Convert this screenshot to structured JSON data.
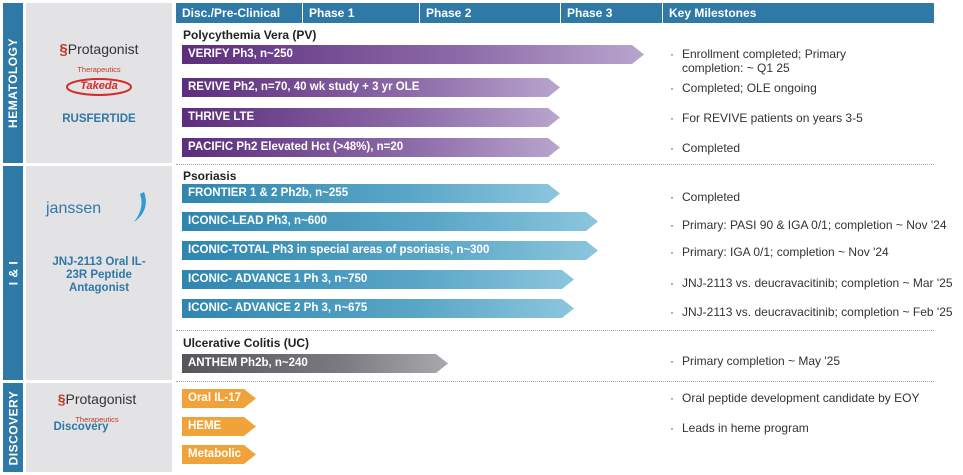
{
  "headers": [
    "Disc./Pre-Clinical",
    "Phase 1",
    "Phase 2",
    "Phase 3",
    "Key Milestones"
  ],
  "sections": {
    "hematology": {
      "label": "HEMATOLOGY",
      "logo_protagonist": "Protagonist",
      "logo_protagonist_sub": "Therapeutics",
      "logo_takeda": "Takeda",
      "program": "RUSFERTIDE",
      "indication": "Polycythemia Vera (PV)",
      "trials": [
        {
          "label": "VERIFY Ph3, n~250",
          "milestone": "Enrollment completed; Primary completion: ~ Q1 25"
        },
        {
          "label": "REVIVE Ph2, n=70, 40 wk study + 3 yr OLE",
          "milestone": "Completed; OLE ongoing"
        },
        {
          "label": "THRIVE LTE",
          "milestone": "For REVIVE patients on years 3-5"
        },
        {
          "label": "PACIFIC Ph2 Elevated Hct (>48%), n=20",
          "milestone": "Completed"
        }
      ]
    },
    "ii": {
      "label": "I & I",
      "logo_janssen": "janssen",
      "program": "JNJ-2113 Oral IL-23R Peptide Antagonist",
      "indication": "Psoriasis",
      "trials": [
        {
          "label": "FRONTIER 1 & 2 Ph2b, n~255",
          "milestone": "Completed"
        },
        {
          "label": "ICONIC-LEAD Ph3, n~600",
          "milestone": "Primary: PASI 90 & IGA 0/1; completion ~ Nov '24"
        },
        {
          "label": "ICONIC-TOTAL Ph3 in special areas of psoriasis, n~300",
          "milestone": "Primary: IGA 0/1; completion ~ Nov '24"
        },
        {
          "label": "ICONIC- ADVANCE 1 Ph 3, n~750",
          "milestone": "JNJ-2113 vs. deucravacitinib; completion ~ Mar '25"
        },
        {
          "label": "ICONIC- ADVANCE 2 Ph 3, n~675",
          "milestone": "JNJ-2113 vs. deucravacitinib; completion ~ Feb '25"
        }
      ],
      "indication2": "Ulcerative Colitis (UC)",
      "trials2": [
        {
          "label": "ANTHEM Ph2b, n~240",
          "milestone": "Primary completion ~ May '25"
        }
      ]
    },
    "discovery": {
      "label": "DISCOVERY",
      "logo_protagonist": "Protagonist",
      "logo_protagonist_sub": "Therapeutics",
      "program": "Discovery",
      "items": [
        {
          "label": "Oral IL-17",
          "milestone": "Oral peptide development candidate by EOY"
        },
        {
          "label": "HEME",
          "milestone": "Leads in heme program"
        },
        {
          "label": "Metabolic",
          "milestone": ""
        }
      ]
    }
  },
  "colors": {
    "header_blue": "#2e79a6",
    "hematology_bar": "#5c2d7c",
    "ii_bar": "#2f86ae",
    "uc_bar": "#55555a",
    "discovery_bar": "#f0a33a"
  }
}
